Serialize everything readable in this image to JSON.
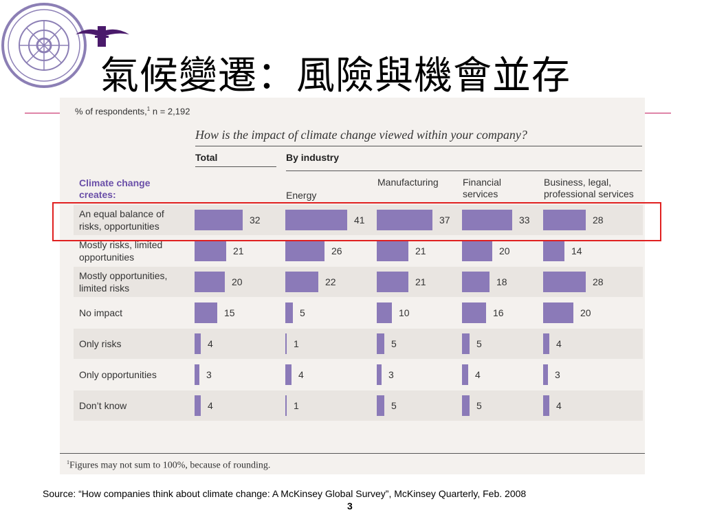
{
  "slide": {
    "title": "氣候變遷：風險與機會並存",
    "source": "Source: “How companies think about climate change: A McKinsey Global Survey”, McKinsey Quarterly, Feb. 2008",
    "page_number": "3",
    "highlight_color": "#e02020",
    "title_rule_color": "#c2185b"
  },
  "header": {
    "logo": "university-seal-icon",
    "mark": "school-mark-icon"
  },
  "figure": {
    "respondents_text": "% of respondents,",
    "respondents_sup": "1",
    "respondents_n": " n = 2,192",
    "question": "How is the impact of climate change viewed within your company?",
    "total_label": "Total",
    "industry_label": "By industry",
    "row_header": "Climate change creates:",
    "footnote_sup": "1",
    "footnote": "Figures may not sum to 100%, because of rounding.",
    "bar_color": "#8b7ab8"
  },
  "chart_data": {
    "type": "bar",
    "title": "How is the impact of climate change viewed within your company?",
    "unit": "% of respondents",
    "columns": [
      "Total",
      "Energy",
      "Manufacturing",
      "Financial services",
      "Business, legal, professional services"
    ],
    "categories": [
      "An equal balance of risks, opportunities",
      "Mostly risks, limited opportunities",
      "Mostly opportunities, limited risks",
      "No impact",
      "Only risks",
      "Only opportunities",
      "Don’t know"
    ],
    "series": [
      {
        "name": "Total",
        "values": [
          32,
          21,
          20,
          15,
          4,
          3,
          4
        ]
      },
      {
        "name": "Energy",
        "values": [
          41,
          26,
          22,
          5,
          1,
          4,
          1
        ]
      },
      {
        "name": "Manufacturing",
        "values": [
          37,
          21,
          21,
          10,
          5,
          3,
          5
        ]
      },
      {
        "name": "Financial services",
        "values": [
          33,
          20,
          18,
          16,
          5,
          4,
          5
        ]
      },
      {
        "name": "Business, legal, professional services",
        "values": [
          28,
          14,
          28,
          20,
          4,
          3,
          4
        ]
      }
    ],
    "highlighted_category": "An equal balance of risks, opportunities"
  }
}
